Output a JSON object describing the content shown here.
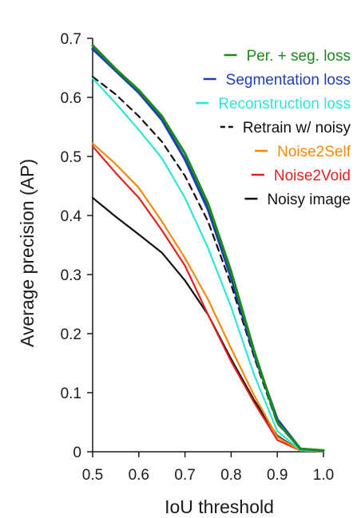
{
  "chart_data": {
    "type": "line",
    "title": "",
    "xlabel": "IoU threshold",
    "ylabel": "Average precision (AP)",
    "xlim": [
      0.5,
      1.0
    ],
    "ylim": [
      0,
      0.7
    ],
    "xticks": [
      "0.5",
      "0.6",
      "0.7",
      "0.8",
      "0.9",
      "1.0"
    ],
    "yticks": [
      "0",
      "0.1",
      "0.2",
      "0.3",
      "0.4",
      "0.5",
      "0.6",
      "0.7"
    ],
    "grid": false,
    "legend_position": "top-right",
    "x": [
      0.5,
      0.55,
      0.6,
      0.65,
      0.7,
      0.75,
      0.8,
      0.85,
      0.9,
      0.95,
      1.0
    ],
    "series": [
      {
        "name": "Per. + seg. loss",
        "color": "#1a8a1a",
        "dashed": false,
        "values": [
          0.688,
          0.648,
          0.612,
          0.568,
          0.505,
          0.42,
          0.305,
          0.17,
          0.05,
          0.005,
          0.002
        ]
      },
      {
        "name": "Segmentation loss",
        "color": "#1c3fb5",
        "dashed": false,
        "values": [
          0.682,
          0.645,
          0.608,
          0.562,
          0.495,
          0.41,
          0.295,
          0.165,
          0.055,
          0.005,
          0.002
        ]
      },
      {
        "name": "Reconstruction loss",
        "color": "#2ee6d6",
        "dashed": false,
        "values": [
          0.632,
          0.59,
          0.545,
          0.497,
          0.43,
          0.345,
          0.245,
          0.13,
          0.035,
          0.003,
          0.001
        ]
      },
      {
        "name": "Retrain w/ noisy",
        "color": "#111111",
        "dashed": true,
        "values": [
          0.635,
          0.605,
          0.568,
          0.525,
          0.467,
          0.39,
          0.283,
          0.16,
          0.048,
          0.005,
          0.002
        ]
      },
      {
        "name": "Noise2Self",
        "color": "#f28a0c",
        "dashed": false,
        "values": [
          0.522,
          0.487,
          0.447,
          0.39,
          0.328,
          0.258,
          0.175,
          0.095,
          0.025,
          0.002,
          0.001
        ]
      },
      {
        "name": "Noise2Void",
        "color": "#e32121",
        "dashed": false,
        "values": [
          0.517,
          0.472,
          0.43,
          0.375,
          0.315,
          0.232,
          0.153,
          0.083,
          0.02,
          0.002,
          0.001
        ]
      },
      {
        "name": "Noisy image",
        "color": "#111111",
        "dashed": false,
        "values": [
          0.43,
          0.398,
          0.368,
          0.337,
          0.29,
          0.232,
          0.157,
          0.087,
          0.027,
          0.002,
          0.001
        ]
      }
    ]
  }
}
